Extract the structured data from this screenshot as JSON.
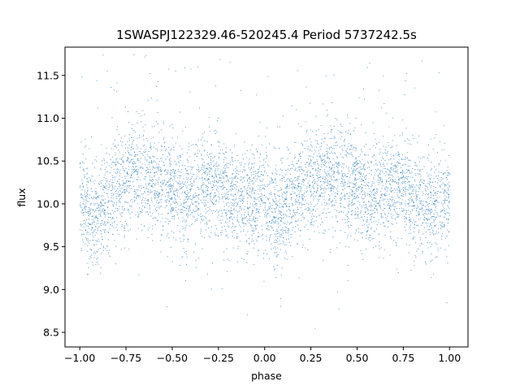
{
  "chart_data": {
    "type": "scatter",
    "title": "1SWASPJ122329.46-520245.4 Period 5737242.5s",
    "xlabel": "phase",
    "ylabel": "flux",
    "xlim": [
      -1.08,
      1.1
    ],
    "ylim": [
      8.33,
      11.83
    ],
    "xticks": [
      -1.0,
      -0.75,
      -0.5,
      -0.25,
      0.0,
      0.25,
      0.5,
      0.75,
      1.0
    ],
    "xtick_labels": [
      "−1.00",
      "−0.75",
      "−0.50",
      "−0.25",
      "0.00",
      "0.25",
      "0.50",
      "0.75",
      "1.00"
    ],
    "yticks": [
      8.5,
      9.0,
      9.5,
      10.0,
      10.5,
      11.0,
      11.5
    ],
    "ytick_labels": [
      "8.5",
      "9.0",
      "9.5",
      "10.0",
      "10.5",
      "11.0",
      "11.5"
    ],
    "grid": false,
    "marker_color": "#1f77b4",
    "marker_alpha": 0.75,
    "series": [
      {
        "x_range": [
          -1.0,
          1.0
        ],
        "profile": [
          {
            "phase": 0.0,
            "mean": 10.05
          },
          {
            "phase": 0.06,
            "mean": 9.85
          },
          {
            "phase": 0.12,
            "mean": 9.95
          },
          {
            "phase": 0.2,
            "mean": 10.2
          },
          {
            "phase": 0.3,
            "mean": 10.35
          },
          {
            "phase": 0.4,
            "mean": 10.3
          },
          {
            "phase": 0.5,
            "mean": 10.2
          },
          {
            "phase": 0.56,
            "mean": 10.05
          },
          {
            "phase": 0.6,
            "mean": 10.1
          },
          {
            "phase": 0.7,
            "mean": 10.25
          },
          {
            "phase": 0.8,
            "mean": 10.15
          },
          {
            "phase": 0.88,
            "mean": 10.0
          },
          {
            "phase": 0.94,
            "mean": 10.05
          },
          {
            "phase": 1.0,
            "mean": 10.05
          }
        ],
        "scatter_sd": 0.3,
        "outlier_range": [
          8.5,
          11.8
        ]
      }
    ]
  }
}
